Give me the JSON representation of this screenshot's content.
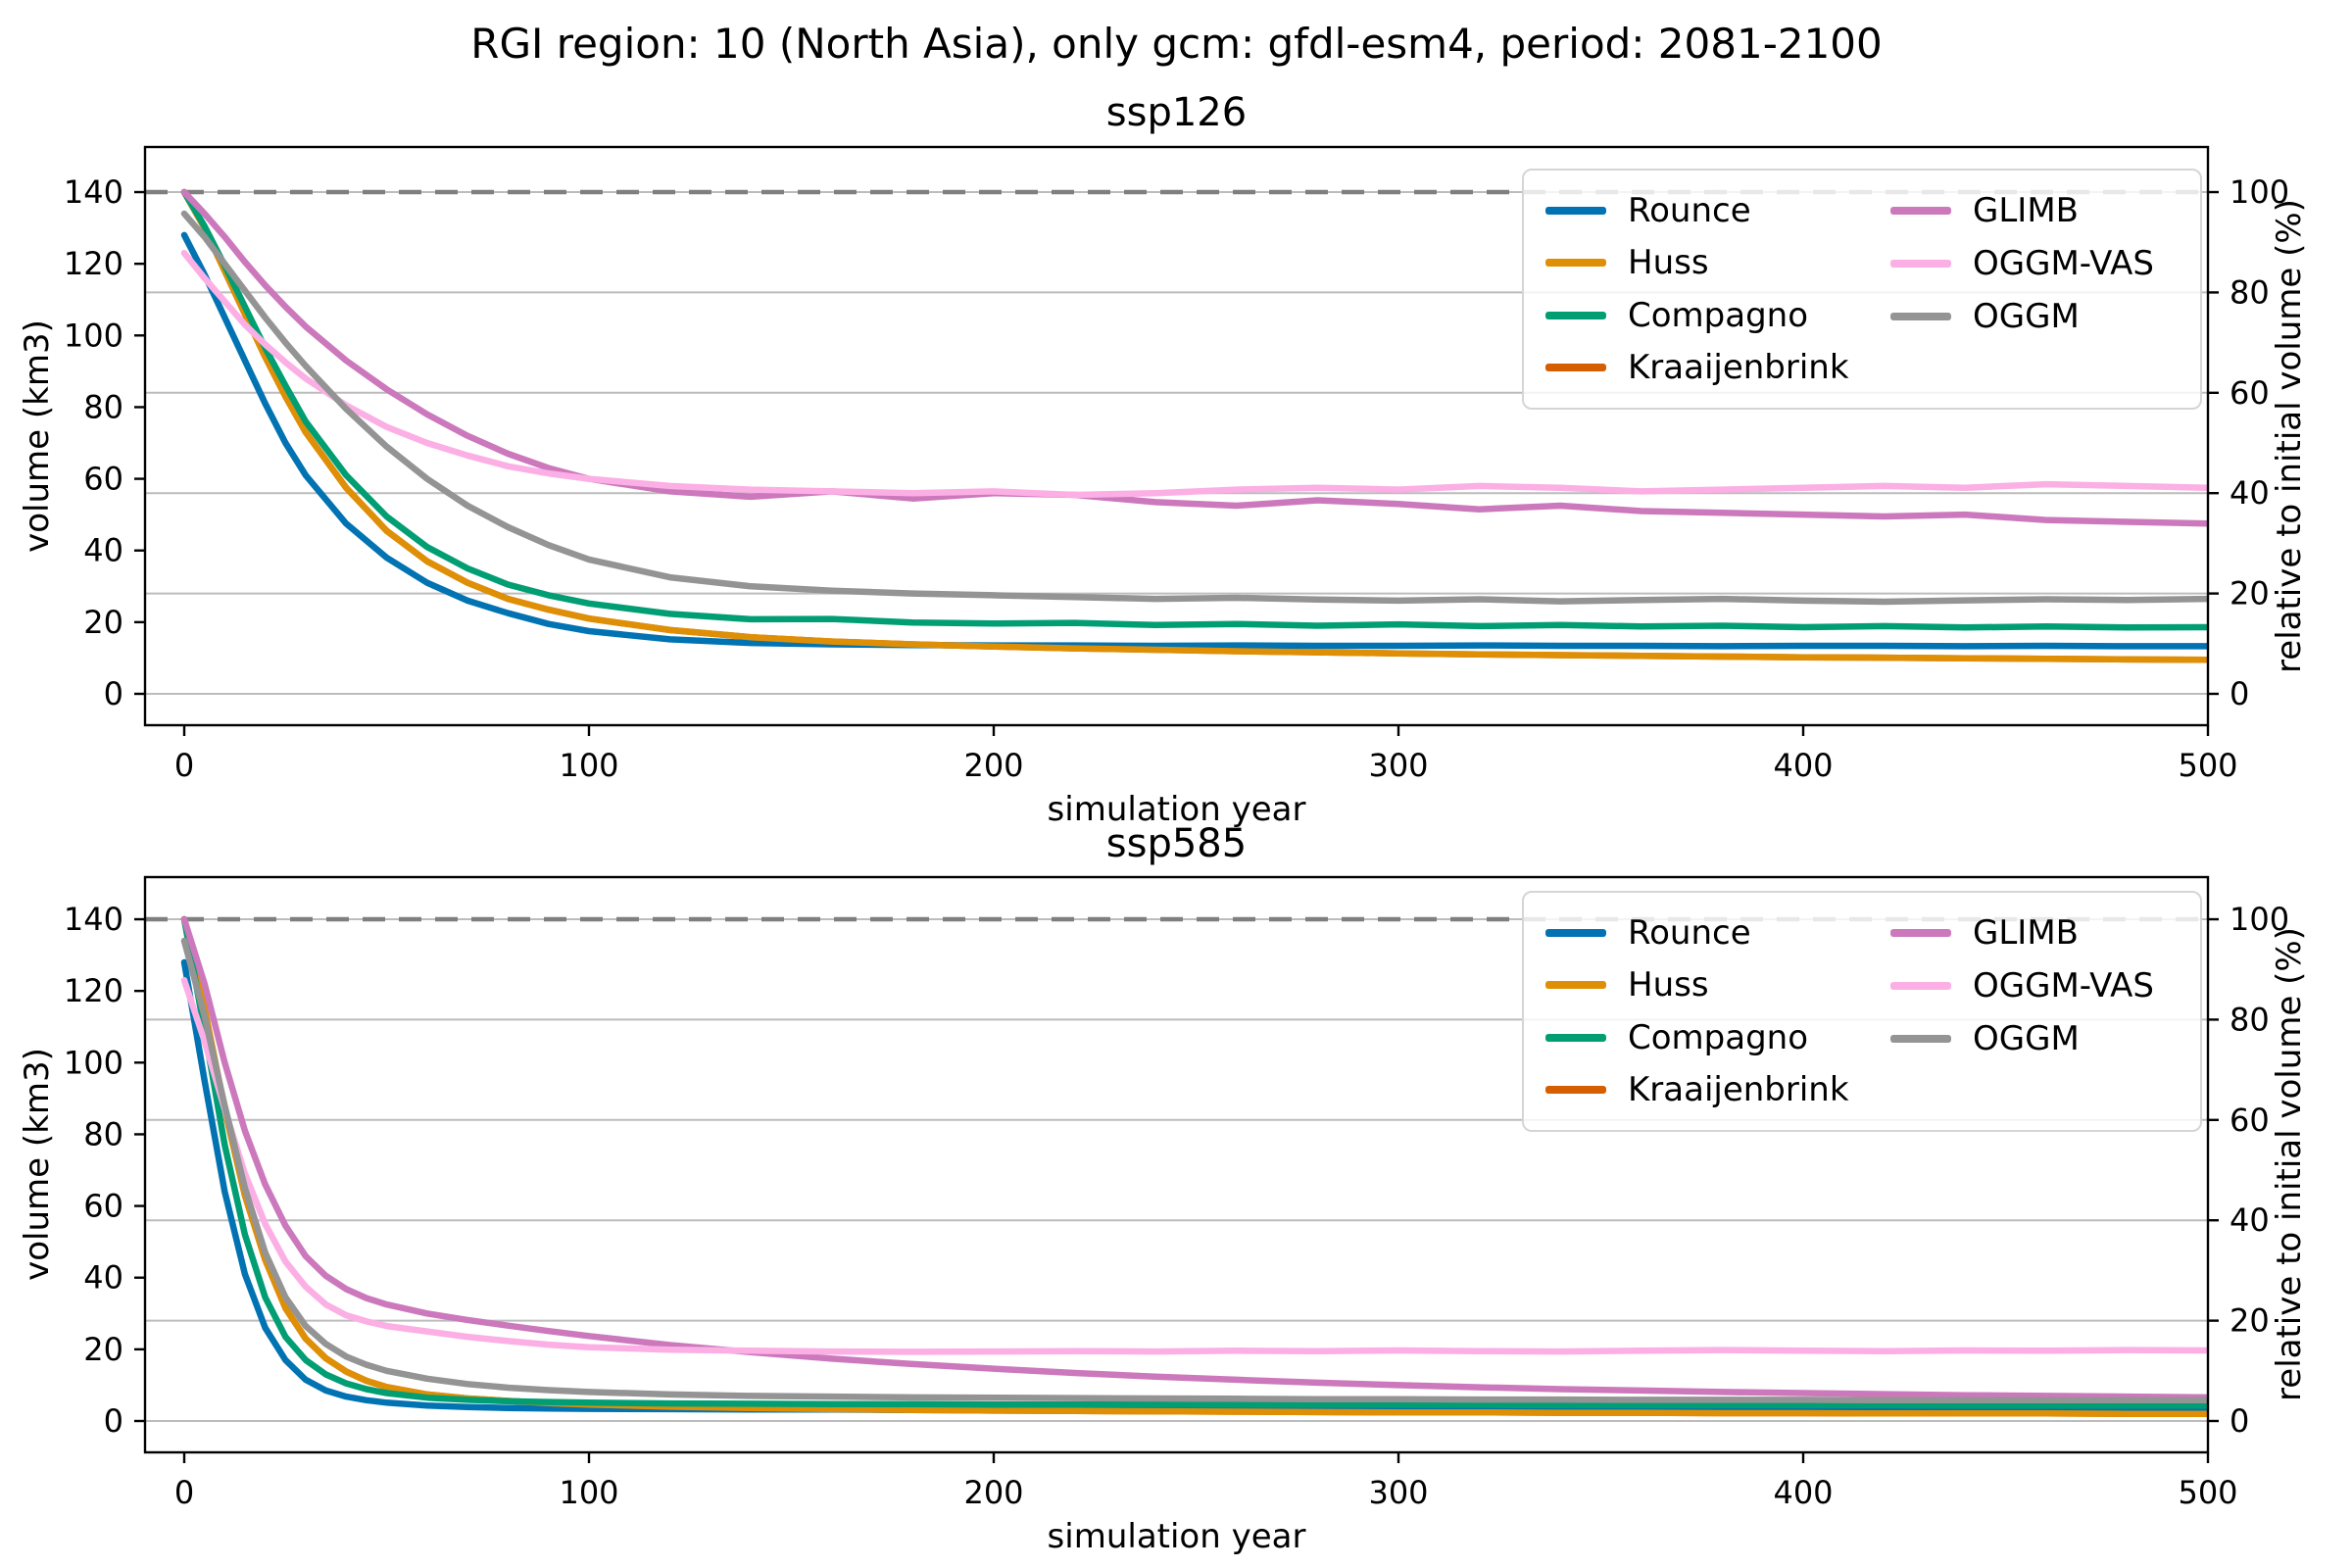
{
  "suptitle": "RGI region: 10 (North Asia), only gcm: gfdl-esm4, period: 2081-2100",
  "axes": {
    "xlabel": "simulation year",
    "ylabel_left": "volume (km3)",
    "ylabel_right": "relative to initial volume (%)"
  },
  "legend": {
    "position": "upper right",
    "items": [
      {
        "label": "Rounce",
        "color": "#0173b2"
      },
      {
        "label": "Huss",
        "color": "#de8f05"
      },
      {
        "label": "Compagno",
        "color": "#029e73"
      },
      {
        "label": "Kraaijenbrink",
        "color": "#d55e00"
      },
      {
        "label": "GLIMB",
        "color": "#cc78bc"
      },
      {
        "label": "OGGM-VAS",
        "color": "#fbafe4"
      },
      {
        "label": "OGGM",
        "color": "#949494"
      }
    ]
  },
  "chart_data": [
    {
      "type": "line",
      "title": "ssp126",
      "xlabel": "simulation year",
      "ylabel_left": "volume (km3)",
      "ylabel_right": "relative to initial volume (%)",
      "xlim": [
        0,
        500
      ],
      "xticks": [
        0,
        100,
        200,
        300,
        400,
        500
      ],
      "yticks_left": [
        0,
        20,
        40,
        60,
        80,
        100,
        120,
        140
      ],
      "yticks_right": [
        0,
        20,
        40,
        60,
        80,
        100
      ],
      "grid": "horizontal at right-axis ticks",
      "reference_line": {
        "value_km3": 140,
        "pct": 100,
        "style": "dashed",
        "color": "#7f7f7f"
      },
      "x": [
        0,
        5,
        10,
        15,
        20,
        25,
        30,
        40,
        50,
        60,
        70,
        80,
        90,
        100,
        120,
        140,
        160,
        180,
        200,
        220,
        240,
        260,
        280,
        300,
        320,
        340,
        360,
        380,
        400,
        420,
        440,
        460,
        480,
        500
      ],
      "series": [
        {
          "name": "Rounce",
          "color": "#0173b2",
          "values": [
            128,
            117,
            105,
            93,
            81,
            70,
            61,
            47.5,
            38,
            31,
            26,
            22.5,
            19.5,
            17.5,
            15.2,
            14.2,
            13.8,
            13.6,
            13.5,
            13.5,
            13.4,
            13.5,
            13.4,
            13.4,
            13.5,
            13.4,
            13.4,
            13.3,
            13.4,
            13.4,
            13.3,
            13.4,
            13.3,
            13.3
          ]
        },
        {
          "name": "Huss",
          "color": "#de8f05",
          "values": [
            140,
            130,
            118,
            106,
            94,
            83,
            73,
            57.5,
            45.5,
            37,
            31,
            26.5,
            23.5,
            21,
            17.8,
            15.8,
            14.6,
            13.8,
            13.2,
            12.7,
            12.3,
            11.9,
            11.6,
            11.3,
            11.0,
            10.8,
            10.6,
            10.4,
            10.2,
            10.1,
            9.9,
            9.8,
            9.6,
            9.5
          ]
        },
        {
          "name": "Compagno",
          "color": "#029e73",
          "values": [
            140,
            130.5,
            119.5,
            108,
            96.5,
            86,
            76,
            61,
            49.5,
            41,
            35,
            30.5,
            27.5,
            25.2,
            22.3,
            20.8,
            20.9,
            19.9,
            19.6,
            19.8,
            19.2,
            19.5,
            19.0,
            19.4,
            18.9,
            19.2,
            18.8,
            19.0,
            18.6,
            18.9,
            18.5,
            18.8,
            18.5,
            18.6
          ]
        },
        {
          "name": "Kraaijenbrink",
          "color": "#d55e00",
          "values": [
            140,
            130,
            118,
            106,
            94,
            83,
            73,
            57.5,
            45.5,
            37,
            31,
            26.5,
            23.5,
            21,
            17.8,
            15.8,
            14.6,
            13.8,
            13.2,
            12.7,
            12.3,
            11.9,
            11.6,
            11.3,
            11.0,
            10.8,
            10.6,
            10.4,
            10.2,
            10.1,
            9.9,
            9.8,
            9.6,
            9.5
          ]
        },
        {
          "name": "GLIMB",
          "color": "#cc78bc",
          "values": [
            140,
            134,
            127.5,
            120.5,
            114,
            108,
            102.5,
            93,
            85,
            78,
            72,
            67,
            63,
            60,
            56.5,
            55,
            56.5,
            54.5,
            56,
            55.5,
            53.5,
            52.5,
            54,
            53,
            51.5,
            52.5,
            51,
            50.5,
            50,
            49.5,
            50,
            48.5,
            48,
            47.5
          ]
        },
        {
          "name": "OGGM-VAS",
          "color": "#fbafe4",
          "values": [
            123,
            116,
            109.5,
            103,
            97.5,
            92.5,
            88,
            80.5,
            74.5,
            70,
            66.5,
            63.5,
            61.5,
            60,
            58,
            57,
            56.5,
            56,
            56.5,
            55.5,
            56,
            57,
            57.5,
            57,
            58,
            57.5,
            56.5,
            57,
            57.5,
            58,
            57.5,
            58.5,
            58,
            57.5
          ]
        },
        {
          "name": "OGGM",
          "color": "#949494",
          "values": [
            134,
            127.5,
            120,
            112.5,
            105,
            98,
            91.5,
            79.5,
            69,
            60,
            52.5,
            46.5,
            41.5,
            37.5,
            32.5,
            30,
            28.8,
            28,
            27.5,
            27,
            26.5,
            26.8,
            26.3,
            26,
            26.4,
            25.8,
            26.2,
            26.5,
            26,
            25.7,
            26.1,
            26.4,
            26.2,
            26.5
          ]
        }
      ]
    },
    {
      "type": "line",
      "title": "ssp585",
      "xlabel": "simulation year",
      "ylabel_left": "volume (km3)",
      "ylabel_right": "relative to initial volume (%)",
      "xlim": [
        0,
        500
      ],
      "xticks": [
        0,
        100,
        200,
        300,
        400,
        500
      ],
      "yticks_left": [
        0,
        20,
        40,
        60,
        80,
        100,
        120,
        140
      ],
      "yticks_right": [
        0,
        20,
        40,
        60,
        80,
        100
      ],
      "grid": "horizontal at right-axis ticks",
      "reference_line": {
        "value_km3": 140,
        "pct": 100,
        "style": "dashed",
        "color": "#7f7f7f"
      },
      "x": [
        0,
        5,
        10,
        15,
        20,
        25,
        30,
        35,
        40,
        45,
        50,
        60,
        70,
        80,
        90,
        100,
        120,
        140,
        160,
        180,
        200,
        220,
        240,
        260,
        280,
        300,
        320,
        340,
        360,
        380,
        400,
        420,
        440,
        460,
        480,
        500
      ],
      "series": [
        {
          "name": "Rounce",
          "color": "#0173b2",
          "values": [
            128,
            95,
            64,
            41,
            26,
            17,
            11.5,
            8.5,
            6.8,
            5.8,
            5.1,
            4.3,
            3.9,
            3.6,
            3.5,
            3.4,
            3.3,
            3.2,
            3.2,
            3.1,
            3.1,
            3.1,
            3.0,
            3.0,
            3.0,
            3.0,
            3.0,
            2.9,
            2.9,
            2.9,
            2.9,
            2.9,
            2.9,
            2.9,
            2.9,
            2.9
          ]
        },
        {
          "name": "Huss",
          "color": "#de8f05",
          "values": [
            140,
            115,
            87,
            63,
            45,
            31.5,
            23,
            17.5,
            13.8,
            11.2,
            9.5,
            7.4,
            6.3,
            5.6,
            5.0,
            4.6,
            4.0,
            3.6,
            3.3,
            3.1,
            2.9,
            2.8,
            2.7,
            2.6,
            2.5,
            2.4,
            2.4,
            2.3,
            2.3,
            2.2,
            2.2,
            2.1,
            2.1,
            2.1,
            2.0,
            2.0
          ]
        },
        {
          "name": "Compagno",
          "color": "#029e73",
          "values": [
            140,
            109,
            77,
            52,
            34.5,
            23.5,
            17,
            13,
            10.5,
            8.9,
            7.8,
            6.5,
            5.9,
            5.5,
            5.3,
            5.1,
            4.9,
            4.8,
            4.7,
            4.7,
            4.6,
            4.6,
            4.6,
            4.5,
            4.5,
            4.5,
            4.5,
            4.4,
            4.4,
            4.4,
            4.4,
            4.4,
            4.3,
            4.3,
            4.3,
            4.3
          ]
        },
        {
          "name": "Kraaijenbrink",
          "color": "#d55e00",
          "values": [
            140,
            115,
            87,
            63,
            45,
            31.5,
            23,
            17.5,
            13.8,
            11.2,
            9.5,
            7.4,
            6.3,
            5.6,
            5.0,
            4.6,
            4.0,
            3.6,
            3.3,
            3.1,
            2.9,
            2.8,
            2.7,
            2.6,
            2.5,
            2.4,
            2.4,
            2.3,
            2.3,
            2.2,
            2.2,
            2.1,
            2.1,
            2.1,
            2.0,
            2.0
          ]
        },
        {
          "name": "GLIMB",
          "color": "#cc78bc",
          "values": [
            140,
            122,
            100,
            81,
            66,
            54.5,
            46,
            40.5,
            36.8,
            34.3,
            32.5,
            30,
            28.2,
            26.6,
            25.1,
            23.7,
            21.2,
            19.2,
            17.4,
            15.9,
            14.6,
            13.4,
            12.4,
            11.5,
            10.7,
            10.0,
            9.4,
            8.9,
            8.5,
            8.1,
            7.8,
            7.5,
            7.2,
            7.0,
            6.8,
            6.6
          ]
        },
        {
          "name": "OGGM-VAS",
          "color": "#fbafe4",
          "values": [
            123,
            106,
            87,
            69,
            55,
            44.5,
            37.5,
            32.5,
            29.5,
            27.8,
            26.5,
            25,
            23.5,
            22.3,
            21.3,
            20.6,
            19.9,
            19.6,
            19.4,
            19.3,
            19.4,
            19.5,
            19.4,
            19.6,
            19.5,
            19.7,
            19.5,
            19.4,
            19.6,
            19.8,
            19.6,
            19.5,
            19.7,
            19.6,
            19.8,
            19.7
          ]
        },
        {
          "name": "OGGM",
          "color": "#949494",
          "values": [
            134,
            113,
            88,
            65,
            47,
            34.5,
            26.5,
            21.5,
            18,
            15.7,
            14,
            11.8,
            10.3,
            9.3,
            8.6,
            8.1,
            7.4,
            7.0,
            6.8,
            6.6,
            6.5,
            6.4,
            6.3,
            6.2,
            6.1,
            6.1,
            6.0,
            6.0,
            5.9,
            5.9,
            5.9,
            5.8,
            5.8,
            5.8,
            5.8,
            5.8
          ]
        }
      ]
    }
  ]
}
